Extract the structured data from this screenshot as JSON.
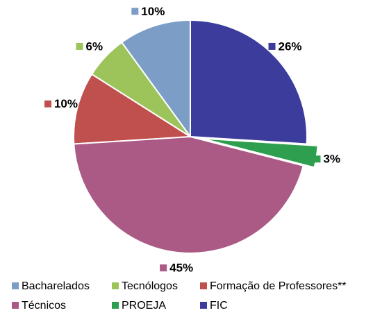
{
  "chart_data": {
    "type": "pie",
    "categories": [
      "Bacharelados",
      "Tecnólogos",
      "Formação de Professores**",
      "Técnicos",
      "PROEJA",
      "FIC"
    ],
    "values": [
      10,
      6,
      10,
      45,
      3,
      26
    ],
    "value_labels": [
      "10%",
      "6%",
      "10%",
      "45%",
      "3%",
      "26%"
    ],
    "colors": [
      "#7b9dc6",
      "#9dc35b",
      "#c0504d",
      "#ab5a86",
      "#2e9e4f",
      "#3c3c9c"
    ],
    "exploded": [
      "PROEJA"
    ]
  }
}
